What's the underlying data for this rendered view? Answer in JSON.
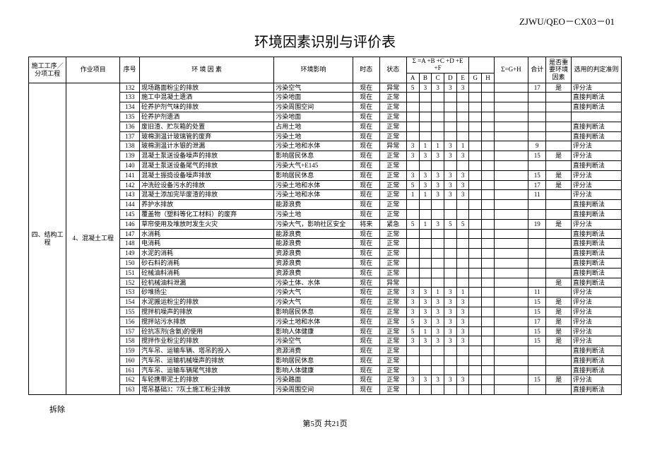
{
  "doc_code": "ZJWU/QEO－CX03－01",
  "title": "环境因素识别与评价表",
  "header": {
    "col_proc": "施工工序／分项工程",
    "col_job": "作业项目",
    "col_seq": "序号",
    "col_factor": "环 境 因 素",
    "col_impact": "环境影响",
    "col_time": "时态",
    "col_state": "状态",
    "col_sigma1": "Σ =A +B +C +D +E +F",
    "col_sigma2": "Σ=G+H",
    "col_total": "合计",
    "col_key": "是否重要环境因素",
    "col_criteria": "选用的判定准则",
    "sub": {
      "A": "A",
      "B": "B",
      "C": "C",
      "D": "D",
      "E": "E",
      "G": "G",
      "H": "H"
    }
  },
  "proc": "四、结构工程",
  "job": "4、混凝土工程",
  "rows": [
    {
      "seq": "132",
      "factor": "现场路面粉尘的排放",
      "impact": "污染空气",
      "time": "现在",
      "state": "异常",
      "A": "5",
      "B": "3",
      "C": "3",
      "D": "3",
      "E": "3",
      "G": "",
      "H": "",
      "total": "17",
      "key": "是",
      "crit": "评分法"
    },
    {
      "seq": "133",
      "factor": "施工中混凝土遗洒",
      "impact": "污染地面",
      "time": "现在",
      "state": "正常",
      "A": "",
      "B": "",
      "C": "",
      "D": "",
      "E": "",
      "G": "",
      "H": "",
      "total": "",
      "key": "",
      "crit": "直接判断法"
    },
    {
      "seq": "134",
      "factor": "砼养护剂气味的排放",
      "impact": "污染周围空间",
      "time": "现在",
      "state": "正常",
      "A": "",
      "B": "",
      "C": "",
      "D": "",
      "E": "",
      "G": "",
      "H": "",
      "total": "",
      "key": "",
      "crit": "直接判断法"
    },
    {
      "seq": "135",
      "factor": "砼养护剂遗洒",
      "impact": "污染地面",
      "time": "现在",
      "state": "正常",
      "A": "",
      "B": "",
      "C": "",
      "D": "",
      "E": "",
      "G": "",
      "H": "",
      "total": "",
      "key": "",
      "crit": ""
    },
    {
      "seq": "136",
      "factor": "废旧渣、贮灰箱的处置",
      "impact": "占用土地",
      "time": "现在",
      "state": "正常",
      "A": "",
      "B": "",
      "C": "",
      "D": "",
      "E": "",
      "G": "",
      "H": "",
      "total": "",
      "key": "",
      "crit": "直接判断法"
    },
    {
      "seq": "137",
      "factor": "玻棉测温计玻璃管的废弃",
      "impact": "污染土地",
      "time": "现在",
      "state": "正常",
      "A": "",
      "B": "",
      "C": "",
      "D": "",
      "E": "",
      "G": "",
      "H": "",
      "total": "",
      "key": "",
      "crit": "直接判断法"
    },
    {
      "seq": "138",
      "factor": "玻棉测温计水银的泄漏",
      "impact": "污染土地和水体",
      "time": "现在",
      "state": "异常",
      "A": "3",
      "B": "1",
      "C": "1",
      "D": "3",
      "E": "1",
      "G": "",
      "H": "",
      "total": "9",
      "key": "",
      "crit": "评分法"
    },
    {
      "seq": "139",
      "factor": "混凝土泵送设备噪声的排放",
      "impact": "影响居民休息",
      "time": "现在",
      "state": "正常",
      "A": "3",
      "B": "3",
      "C": "3",
      "D": "3",
      "E": "3",
      "G": "",
      "H": "",
      "total": "15",
      "key": "是",
      "crit": "评分法"
    },
    {
      "seq": "140",
      "factor": "混凝土泵送设备尾气的排放",
      "impact": "污染大气+E145",
      "time": "现在",
      "state": "正常",
      "A": "",
      "B": "",
      "C": "",
      "D": "",
      "E": "",
      "G": "",
      "H": "",
      "total": "",
      "key": "",
      "crit": "直接判断法"
    },
    {
      "seq": "141",
      "factor": "混凝土振捣设备噪声排放",
      "impact": "影响居民休息",
      "time": "现在",
      "state": "正常",
      "A": "3",
      "B": "3",
      "C": "3",
      "D": "3",
      "E": "3",
      "G": "",
      "H": "",
      "total": "15",
      "key": "是",
      "crit": "评分法"
    },
    {
      "seq": "142",
      "factor": "冲洗砼设备污水的排放",
      "impact": "污染土地和水体",
      "time": "现在",
      "state": "正常",
      "A": "5",
      "B": "3",
      "C": "3",
      "D": "3",
      "E": "3",
      "G": "",
      "H": "",
      "total": "17",
      "key": "是",
      "crit": "评分法"
    },
    {
      "seq": "143",
      "factor": "混凝土添加完毕废渣的排放",
      "impact": "污染土地和水体",
      "time": "现在",
      "state": "正常",
      "A": "1",
      "B": "1",
      "C": "3",
      "D": "3",
      "E": "3",
      "G": "",
      "H": "",
      "total": "11",
      "key": "",
      "crit": "评分法"
    },
    {
      "seq": "144",
      "factor": "养护水排放",
      "impact": "能源浪费",
      "time": "现在",
      "state": "正常",
      "A": "",
      "B": "",
      "C": "",
      "D": "",
      "E": "",
      "G": "",
      "H": "",
      "total": "",
      "key": "",
      "crit": "直接判断法"
    },
    {
      "seq": "145",
      "factor": "覆盖物（塑料等化工材料）的废弃",
      "impact": "污染土地",
      "time": "现在",
      "state": "正常",
      "A": "",
      "B": "",
      "C": "",
      "D": "",
      "E": "",
      "G": "",
      "H": "",
      "total": "",
      "key": "",
      "crit": "直接判断法"
    },
    {
      "seq": "146",
      "factor": "草帘使用及堆放时发生火灾",
      "impact": "污染大气，影响社区安全",
      "time": "将来",
      "state": "紧急",
      "A": "5",
      "B": "1",
      "C": "3",
      "D": "5",
      "E": "5",
      "G": "",
      "H": "",
      "total": "19",
      "key": "是",
      "crit": "评分法",
      "wrap": true
    },
    {
      "seq": "147",
      "factor": "水消耗",
      "impact": "能源浪费",
      "time": "现在",
      "state": "正常",
      "A": "",
      "B": "",
      "C": "",
      "D": "",
      "E": "",
      "G": "",
      "H": "",
      "total": "",
      "key": "",
      "crit": "直接判断法"
    },
    {
      "seq": "148",
      "factor": "电消耗",
      "impact": "能源浪费",
      "time": "现在",
      "state": "正常",
      "A": "",
      "B": "",
      "C": "",
      "D": "",
      "E": "",
      "G": "",
      "H": "",
      "total": "",
      "key": "",
      "crit": "直接判断法"
    },
    {
      "seq": "149",
      "factor": "水泥的消耗",
      "impact": "资源浪费",
      "time": "现在",
      "state": "正常",
      "A": "",
      "B": "",
      "C": "",
      "D": "",
      "E": "",
      "G": "",
      "H": "",
      "total": "",
      "key": "",
      "crit": "直接判断法"
    },
    {
      "seq": "150",
      "factor": "砂石料的消耗",
      "impact": "资源浪费",
      "time": "现在",
      "state": "正常",
      "A": "",
      "B": "",
      "C": "",
      "D": "",
      "E": "",
      "G": "",
      "H": "",
      "total": "",
      "key": "",
      "crit": "直接判断法"
    },
    {
      "seq": "151",
      "factor": "砼械油料消耗",
      "impact": "资源浪费",
      "time": "现在",
      "state": "正常",
      "A": "",
      "B": "",
      "C": "",
      "D": "",
      "E": "",
      "G": "",
      "H": "",
      "total": "",
      "key": "",
      "crit": "直接判断法"
    },
    {
      "seq": "152",
      "factor": "砼机械油料泄漏",
      "impact": "污染土体、水体",
      "time": "现在",
      "state": "异常",
      "A": "",
      "B": "",
      "C": "",
      "D": "",
      "E": "",
      "G": "",
      "H": "",
      "total": "",
      "key": "是",
      "crit": "直接判断法"
    },
    {
      "seq": "153",
      "factor": "砂堆扬尘",
      "impact": "污染大气",
      "time": "现在",
      "state": "正常",
      "A": "3",
      "B": "3",
      "C": "1",
      "D": "3",
      "E": "1",
      "G": "",
      "H": "",
      "total": "11",
      "key": "",
      "crit": "评分法"
    },
    {
      "seq": "154",
      "factor": "水泥搬运粉尘的排放",
      "impact": "污染大气",
      "time": "现在",
      "state": "正常",
      "A": "3",
      "B": "3",
      "C": "3",
      "D": "3",
      "E": "3",
      "G": "",
      "H": "",
      "total": "15",
      "key": "是",
      "crit": "评分法"
    },
    {
      "seq": "155",
      "factor": "搅拌机噪声的排放",
      "impact": "影响居民休息",
      "time": "现在",
      "state": "正常",
      "A": "3",
      "B": "3",
      "C": "3",
      "D": "3",
      "E": "3",
      "G": "",
      "H": "",
      "total": "15",
      "key": "是",
      "crit": "评分法"
    },
    {
      "seq": "156",
      "factor": "搅拌站污水排放",
      "impact": "污染土地和水体",
      "time": "现在",
      "state": "正常",
      "A": "5",
      "B": "3",
      "C": "3",
      "D": "3",
      "E": "3",
      "G": "",
      "H": "",
      "total": "17",
      "key": "是",
      "crit": "评分法"
    },
    {
      "seq": "157",
      "factor": "砼抗冻剂(含氨)的使用",
      "impact": "影响人体健康",
      "time": "现在",
      "state": "正常",
      "A": "5",
      "B": "1",
      "C": "3",
      "D": "3",
      "E": "3",
      "G": "",
      "H": "",
      "total": "15",
      "key": "是",
      "crit": "评分法"
    },
    {
      "seq": "158",
      "factor": "搅拌作业粉尘的排放",
      "impact": "污染空气",
      "time": "现在",
      "state": "正常",
      "A": "3",
      "B": "3",
      "C": "3",
      "D": "3",
      "E": "3",
      "G": "",
      "H": "",
      "total": "15",
      "key": "是",
      "crit": "评分法"
    },
    {
      "seq": "159",
      "factor": "汽车吊、运输车辆、塔吊的投入",
      "impact": "资源消费",
      "time": "现在",
      "state": "正常",
      "A": "",
      "B": "",
      "C": "",
      "D": "",
      "E": "",
      "G": "",
      "H": "",
      "total": "",
      "key": "",
      "crit": "直接判断法"
    },
    {
      "seq": "160",
      "factor": "汽车吊、运输机械噪声的排放",
      "impact": "影响居民休息",
      "time": "现在",
      "state": "正常",
      "A": "",
      "B": "",
      "C": "",
      "D": "",
      "E": "",
      "G": "",
      "H": "",
      "total": "",
      "key": "",
      "crit": "直接判断法"
    },
    {
      "seq": "161",
      "factor": "汽车吊、运输车辆尾气排放",
      "impact": "影响人体健康",
      "time": "现在",
      "state": "正常",
      "A": "",
      "B": "",
      "C": "",
      "D": "",
      "E": "",
      "G": "",
      "H": "",
      "total": "",
      "key": "",
      "crit": "直接判断法"
    },
    {
      "seq": "162",
      "factor": "车轮携带泥土的排放",
      "impact": "污染路面",
      "time": "现在",
      "state": "正常",
      "A": "3",
      "B": "3",
      "C": "3",
      "D": "3",
      "E": "3",
      "G": "",
      "H": "",
      "total": "15",
      "key": "是",
      "crit": "评分法"
    },
    {
      "seq": "163",
      "factor": "塔吊基础3：7灰土施工粉尘排放",
      "impact": "污染周围空间",
      "time": "现在",
      "state": "正常",
      "A": "",
      "B": "",
      "C": "",
      "D": "",
      "E": "",
      "G": "",
      "H": "",
      "total": "",
      "key": "",
      "crit": "直接判断法"
    }
  ],
  "footer_left": "拆除",
  "footer_page": "第5页  共21页"
}
